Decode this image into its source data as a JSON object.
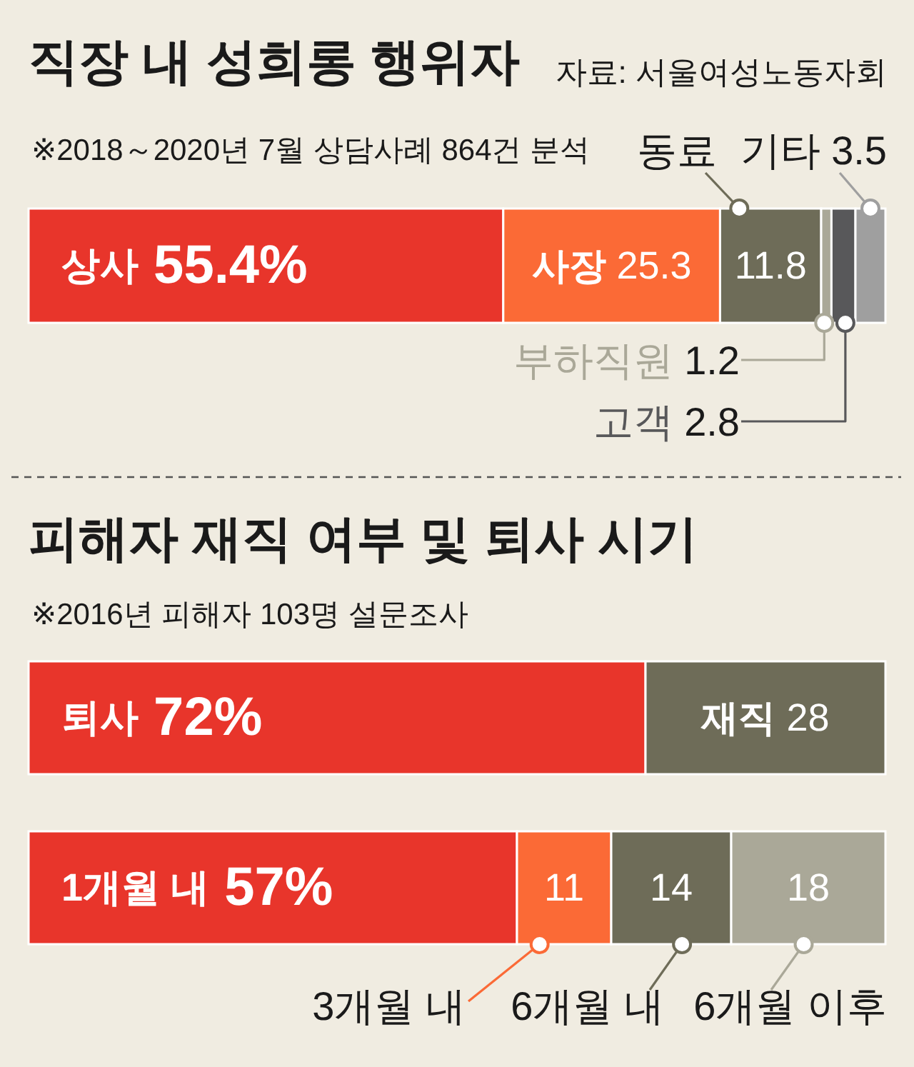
{
  "chart_data": [
    {
      "type": "bar",
      "orientation": "horizontal",
      "stacked": true,
      "title": "직장 내 성희롱 행위자",
      "subtitle": "※2018～2020년 7월 상담사례 864건 분석",
      "annotations": [
        "자료: 서울여성노동자회"
      ],
      "categories": [
        null
      ],
      "xlim": [
        0,
        100
      ],
      "tick_labels": false,
      "series": [
        {
          "name": "상사",
          "color": "#e8352b",
          "values": [
            55.4
          ],
          "value_labels": [
            "55.4%"
          ]
        },
        {
          "name": "사장",
          "color": "#fb6a36",
          "values": [
            25.3
          ],
          "value_labels": [
            "25.3"
          ]
        },
        {
          "name": "동료",
          "color": "#6e6c58",
          "values": [
            11.8
          ],
          "value_labels": [
            "11.8"
          ]
        },
        {
          "name": "부하직원",
          "color": "#aaa898",
          "values": [
            1.2
          ],
          "value_labels": [
            "1.2"
          ]
        },
        {
          "name": "고객",
          "color": "#58585a",
          "values": [
            2.8
          ],
          "value_labels": [
            "2.8"
          ]
        },
        {
          "name": "기타",
          "color": "#9f9f9f",
          "values": [
            3.5
          ],
          "value_labels": [
            "3.5"
          ]
        }
      ]
    },
    {
      "type": "bar",
      "orientation": "horizontal",
      "stacked": true,
      "title": "피해자 재직 여부 및 퇴사 시기",
      "subtitle": "※2016년 피해자 103명 설문조사",
      "categories": [
        null
      ],
      "xlim": [
        0,
        100
      ],
      "tick_labels": false,
      "series": [
        {
          "name": "퇴사",
          "color": "#e8352b",
          "values": [
            72
          ],
          "value_labels": [
            "72%"
          ]
        },
        {
          "name": "재직",
          "color": "#6e6c58",
          "values": [
            28
          ],
          "value_labels": [
            "28"
          ]
        }
      ]
    },
    {
      "type": "bar",
      "orientation": "horizontal",
      "stacked": true,
      "categories": [
        null
      ],
      "xlim": [
        0,
        100
      ],
      "tick_labels": false,
      "legend": "bottom",
      "series": [
        {
          "name": "1개월 내",
          "color": "#e8352b",
          "values": [
            57
          ],
          "value_labels": [
            "57%"
          ]
        },
        {
          "name": "3개월 내",
          "color": "#fb6a36",
          "values": [
            11
          ],
          "value_labels": [
            "11"
          ]
        },
        {
          "name": "6개월 내",
          "color": "#6e6c58",
          "values": [
            14
          ],
          "value_labels": [
            "14"
          ]
        },
        {
          "name": "6개월 이후",
          "color": "#aaa898",
          "values": [
            18
          ],
          "value_labels": [
            "18"
          ]
        }
      ]
    }
  ]
}
